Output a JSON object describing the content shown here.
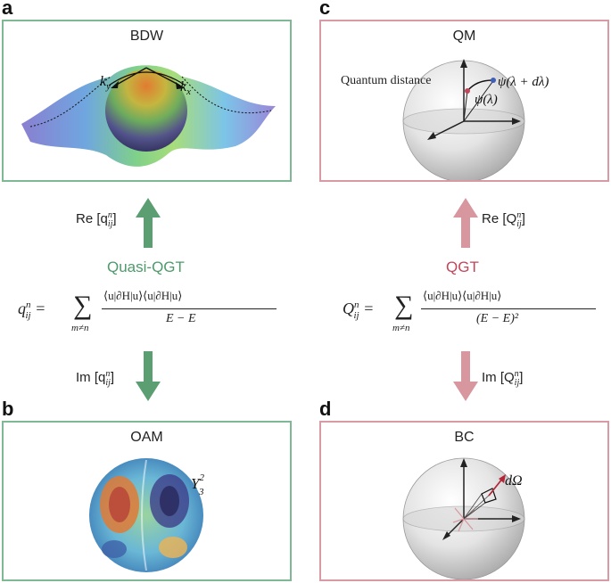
{
  "panels": {
    "a": {
      "letter": "a",
      "title": "BDW",
      "kx": "k",
      "kx_sub": "x",
      "ky": "k",
      "ky_sub": "y"
    },
    "b": {
      "letter": "b",
      "title": "OAM",
      "harmonic": "Y",
      "harmonic_sup": "2",
      "harmonic_sub": "3"
    },
    "c": {
      "letter": "c",
      "title": "QM",
      "distance_label": "Quantum distance",
      "psi_lambda": "ψ(λ)",
      "psi_lambda_dl": "ψ(λ + dλ)"
    },
    "d": {
      "letter": "d",
      "title": "BC",
      "solid_angle": "dΩ"
    }
  },
  "left": {
    "re_label": "Re [q",
    "re_sub": "ij",
    "re_sup": "n",
    "re_close": "]",
    "name": "Quasi-QGT",
    "im_label": "Im [q",
    "im_sub": "ij",
    "im_sup": "n",
    "im_close": "]",
    "lhs": "q",
    "lhs_sup": "n",
    "lhs_sub": "ij",
    "equals": "=",
    "sum_sub": "m≠n",
    "numerator": "⟨u|∂H|u⟩⟨u|∂H|u⟩",
    "denominator": "E − E"
  },
  "right": {
    "re_label": "Re [Q",
    "re_sub": "ij",
    "re_sup": "n",
    "re_close": "]",
    "name": "QGT",
    "im_label": "Im [Q",
    "im_sub": "ij",
    "im_sup": "n",
    "im_close": "]",
    "lhs": "Q",
    "lhs_sup": "n",
    "lhs_sub": "ij",
    "equals": "=",
    "sum_sub": "m≠n",
    "numerator": "⟨u|∂H|u⟩⟨u|∂H|u⟩",
    "denominator": "(E − E)²"
  },
  "colors": {
    "green": "#4e9a6b",
    "pink": "#d89aa3",
    "red_text": "#c2465a"
  }
}
